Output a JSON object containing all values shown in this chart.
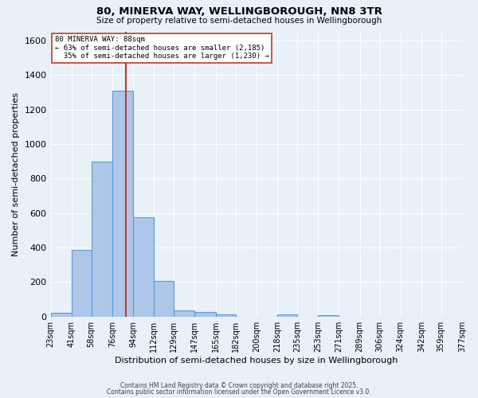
{
  "title": "80, MINERVA WAY, WELLINGBOROUGH, NN8 3TR",
  "subtitle": "Size of property relative to semi-detached houses in Wellingborough",
  "xlabel": "Distribution of semi-detached houses by size in Wellingborough",
  "ylabel": "Number of semi-detached properties",
  "footnote1": "Contains HM Land Registry data © Crown copyright and database right 2025.",
  "footnote2": "Contains public sector information licensed under the Open Government Licence v3.0.",
  "bins": [
    23,
    41,
    58,
    76,
    94,
    112,
    129,
    147,
    165,
    182,
    200,
    218,
    235,
    253,
    271,
    289,
    306,
    324,
    342,
    359,
    377
  ],
  "counts": [
    20,
    385,
    900,
    1310,
    575,
    205,
    35,
    28,
    12,
    0,
    0,
    12,
    0,
    8,
    0,
    0,
    0,
    0,
    0,
    0
  ],
  "bar_color": "#aec6e8",
  "bar_edge_color": "#5b9bd5",
  "property_size": 88,
  "vline_color": "#c0392b",
  "annotation_line1": "80 MINERVA WAY: 88sqm",
  "annotation_line2": "← 63% of semi-detached houses are smaller (2,185)",
  "annotation_line3": "  35% of semi-detached houses are larger (1,230) →",
  "annotation_box_color": "#ffffff",
  "annotation_box_edge": "#c0392b",
  "bg_color": "#e8f0f8",
  "grid_color": "#ffffff",
  "ylim": [
    0,
    1650
  ],
  "yticks": [
    0,
    200,
    400,
    600,
    800,
    1000,
    1200,
    1400,
    1600
  ],
  "tick_labels": [
    "23sqm",
    "41sqm",
    "58sqm",
    "76sqm",
    "94sqm",
    "112sqm",
    "129sqm",
    "147sqm",
    "165sqm",
    "182sqm",
    "200sqm",
    "218sqm",
    "235sqm",
    "253sqm",
    "271sqm",
    "289sqm",
    "306sqm",
    "324sqm",
    "342sqm",
    "359sqm",
    "377sqm"
  ]
}
